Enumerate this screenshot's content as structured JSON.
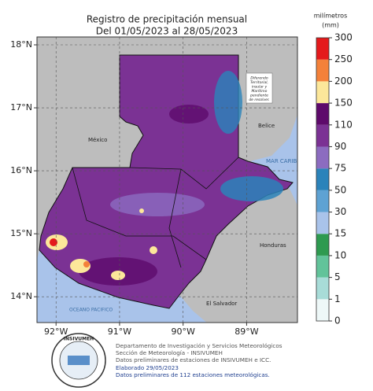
{
  "title": [
    "Registro de precipitación mensual",
    "Del 01/05/2023 al 28/05/2023"
  ],
  "map": {
    "latlim": [
      13.59,
      18.125
    ],
    "lonlim": [
      -92.3,
      -88.2
    ],
    "lat_ticks": [
      {
        "value": 18,
        "label": "18°N"
      },
      {
        "value": 17,
        "label": "17°N"
      },
      {
        "value": 16,
        "label": "16°N"
      },
      {
        "value": 15,
        "label": "15°N"
      },
      {
        "value": 14,
        "label": "14°N"
      }
    ],
    "lon_ticks": [
      {
        "value": -92,
        "label": "92°W"
      },
      {
        "value": -91,
        "label": "91°W"
      },
      {
        "value": -90,
        "label": "90°W"
      },
      {
        "value": -89,
        "label": "89°W"
      }
    ],
    "places": [
      "México",
      "Belice",
      "MAR CARIBE",
      "Honduras",
      "El Salvador",
      "OCEANO PACIFICO"
    ],
    "annotation": [
      "Diferendo",
      "Territorial,",
      "insular y",
      "Marítimo",
      "pendiente",
      "de resolver."
    ]
  },
  "colorbar": {
    "label": [
      "milímetros",
      "(mm)"
    ],
    "ticks": [
      0,
      1,
      5,
      10,
      15,
      30,
      50,
      75,
      90,
      110,
      150,
      200,
      250,
      300
    ],
    "colors": [
      "#eef8f8",
      "#a8dcd8",
      "#62c39a",
      "#2e9a50",
      "#a9c3ea",
      "#5ea2d3",
      "#2b83ba",
      "#8c6cc0",
      "#7b3294",
      "#5e0a6b",
      "#fce79a",
      "#f4813a",
      "#e41a1c"
    ]
  },
  "footer": {
    "logo": "INSIVUMEH",
    "lines": [
      "Departamento de Investigación y Servicios Meteorológicos",
      "Sección de Meteorología - INSIVUMEH",
      "Datos preliminares de estaciones de INSIVUMEH e ICC.",
      "Elaborado 29/05/2023",
      "Datos preliminares de 112 estaciones meteorológicas."
    ]
  }
}
